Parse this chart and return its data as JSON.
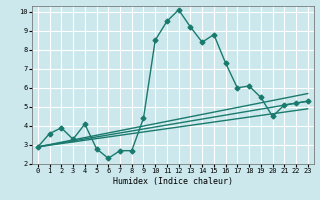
{
  "title": "",
  "xlabel": "Humidex (Indice chaleur)",
  "bg_color": "#cce8ec",
  "grid_color": "#ffffff",
  "line_color": "#1a7a6e",
  "xlim": [
    -0.5,
    23.5
  ],
  "ylim": [
    2,
    10.3
  ],
  "xticks": [
    0,
    1,
    2,
    3,
    4,
    5,
    6,
    7,
    8,
    9,
    10,
    11,
    12,
    13,
    14,
    15,
    16,
    17,
    18,
    19,
    20,
    21,
    22,
    23
  ],
  "yticks": [
    2,
    3,
    4,
    5,
    6,
    7,
    8,
    9,
    10
  ],
  "series": [
    {
      "x": [
        0,
        1,
        2,
        3,
        4,
        5,
        6,
        7,
        8,
        9,
        10,
        11,
        12,
        13,
        14,
        15,
        16,
        17,
        18,
        19,
        20,
        21,
        22,
        23
      ],
      "y": [
        2.9,
        3.6,
        3.9,
        3.3,
        4.1,
        2.8,
        2.3,
        2.7,
        2.7,
        4.4,
        8.5,
        9.5,
        10.1,
        9.2,
        8.4,
        8.8,
        7.3,
        6.0,
        6.1,
        5.5,
        4.5,
        5.1,
        5.2,
        5.3
      ],
      "marker": "D",
      "markersize": 2.5,
      "linewidth": 1.0
    },
    {
      "x": [
        0,
        23
      ],
      "y": [
        2.9,
        5.7
      ],
      "marker": null,
      "markersize": 0,
      "linewidth": 1.0
    },
    {
      "x": [
        0,
        23
      ],
      "y": [
        2.9,
        5.3
      ],
      "marker": null,
      "markersize": 0,
      "linewidth": 1.0
    },
    {
      "x": [
        0,
        23
      ],
      "y": [
        2.9,
        4.9
      ],
      "marker": null,
      "markersize": 0,
      "linewidth": 1.0
    }
  ]
}
